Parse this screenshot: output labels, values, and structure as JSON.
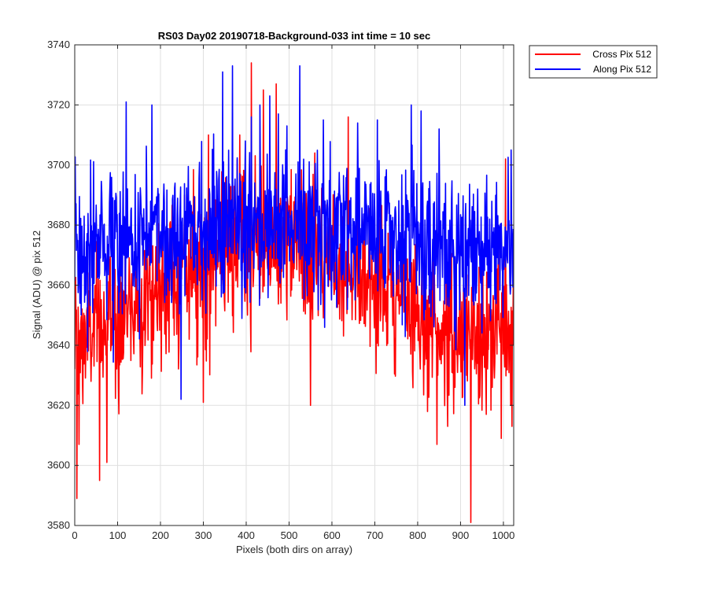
{
  "chart_data": {
    "type": "line",
    "title": "RS03 Day02 20190718-Background-033 int time = 10 sec",
    "xlabel": "Pixels (both dirs on array)",
    "ylabel": "Signal (ADU) @ pix 512",
    "xlim": [
      0,
      1024
    ],
    "ylim": [
      3580,
      3740
    ],
    "xticks": [
      0,
      100,
      200,
      300,
      400,
      500,
      600,
      700,
      800,
      900,
      1000
    ],
    "yticks": [
      3580,
      3600,
      3620,
      3640,
      3660,
      3680,
      3700,
      3720,
      3740
    ],
    "grid": true,
    "legend_position": "outside-top-right",
    "n_points": 1024,
    "series": [
      {
        "name": "Cross Pix 512",
        "color": "#ff0000",
        "mean_profile": [
          [
            0,
            3640
          ],
          [
            50,
            3645
          ],
          [
            100,
            3650
          ],
          [
            150,
            3655
          ],
          [
            200,
            3660
          ],
          [
            250,
            3664
          ],
          [
            300,
            3667
          ],
          [
            350,
            3670
          ],
          [
            400,
            3672
          ],
          [
            450,
            3673
          ],
          [
            500,
            3673
          ],
          [
            550,
            3671
          ],
          [
            600,
            3669
          ],
          [
            650,
            3666
          ],
          [
            700,
            3662
          ],
          [
            750,
            3658
          ],
          [
            800,
            3652
          ],
          [
            850,
            3646
          ],
          [
            900,
            3642
          ],
          [
            950,
            3644
          ],
          [
            1000,
            3646
          ],
          [
            1023,
            3646
          ]
        ],
        "noise_sd": 12,
        "highlights": [
          [
            5,
            3589
          ],
          [
            10,
            3607
          ],
          [
            58,
            3595
          ],
          [
            75,
            3601
          ],
          [
            256,
            3690
          ],
          [
            300,
            3621
          ],
          [
            312,
            3710
          ],
          [
            385,
            3710
          ],
          [
            412,
            3734
          ],
          [
            440,
            3725
          ],
          [
            470,
            3727
          ],
          [
            550,
            3620
          ],
          [
            560,
            3704
          ],
          [
            638,
            3716
          ],
          [
            845,
            3607
          ],
          [
            870,
            3613
          ],
          [
            924,
            3581
          ],
          [
            960,
            3617
          ],
          [
            995,
            3609
          ],
          [
            1005,
            3702
          ],
          [
            1020,
            3613
          ]
        ]
      },
      {
        "name": "Along Pix 512",
        "color": "#0000ff",
        "mean_profile": [
          [
            0,
            3672
          ],
          [
            50,
            3673
          ],
          [
            100,
            3674
          ],
          [
            150,
            3675
          ],
          [
            200,
            3676
          ],
          [
            250,
            3677
          ],
          [
            300,
            3678
          ],
          [
            350,
            3679
          ],
          [
            400,
            3680
          ],
          [
            450,
            3680
          ],
          [
            500,
            3680
          ],
          [
            550,
            3679
          ],
          [
            600,
            3678
          ],
          [
            650,
            3677
          ],
          [
            700,
            3676
          ],
          [
            750,
            3675
          ],
          [
            800,
            3674
          ],
          [
            850,
            3672
          ],
          [
            900,
            3671
          ],
          [
            950,
            3670
          ],
          [
            1000,
            3670
          ],
          [
            1023,
            3670
          ]
        ],
        "noise_sd": 12,
        "highlights": [
          [
            120,
            3721
          ],
          [
            180,
            3720
          ],
          [
            248,
            3622
          ],
          [
            345,
            3731
          ],
          [
            368,
            3733
          ],
          [
            398,
            3708
          ],
          [
            412,
            3716
          ],
          [
            432,
            3720
          ],
          [
            455,
            3723
          ],
          [
            475,
            3717
          ],
          [
            495,
            3713
          ],
          [
            525,
            3733
          ],
          [
            580,
            3715
          ],
          [
            660,
            3714
          ],
          [
            706,
            3715
          ],
          [
            785,
            3720
          ],
          [
            808,
            3718
          ],
          [
            850,
            3712
          ],
          [
            910,
            3620
          ],
          [
            1018,
            3705
          ]
        ]
      }
    ]
  }
}
